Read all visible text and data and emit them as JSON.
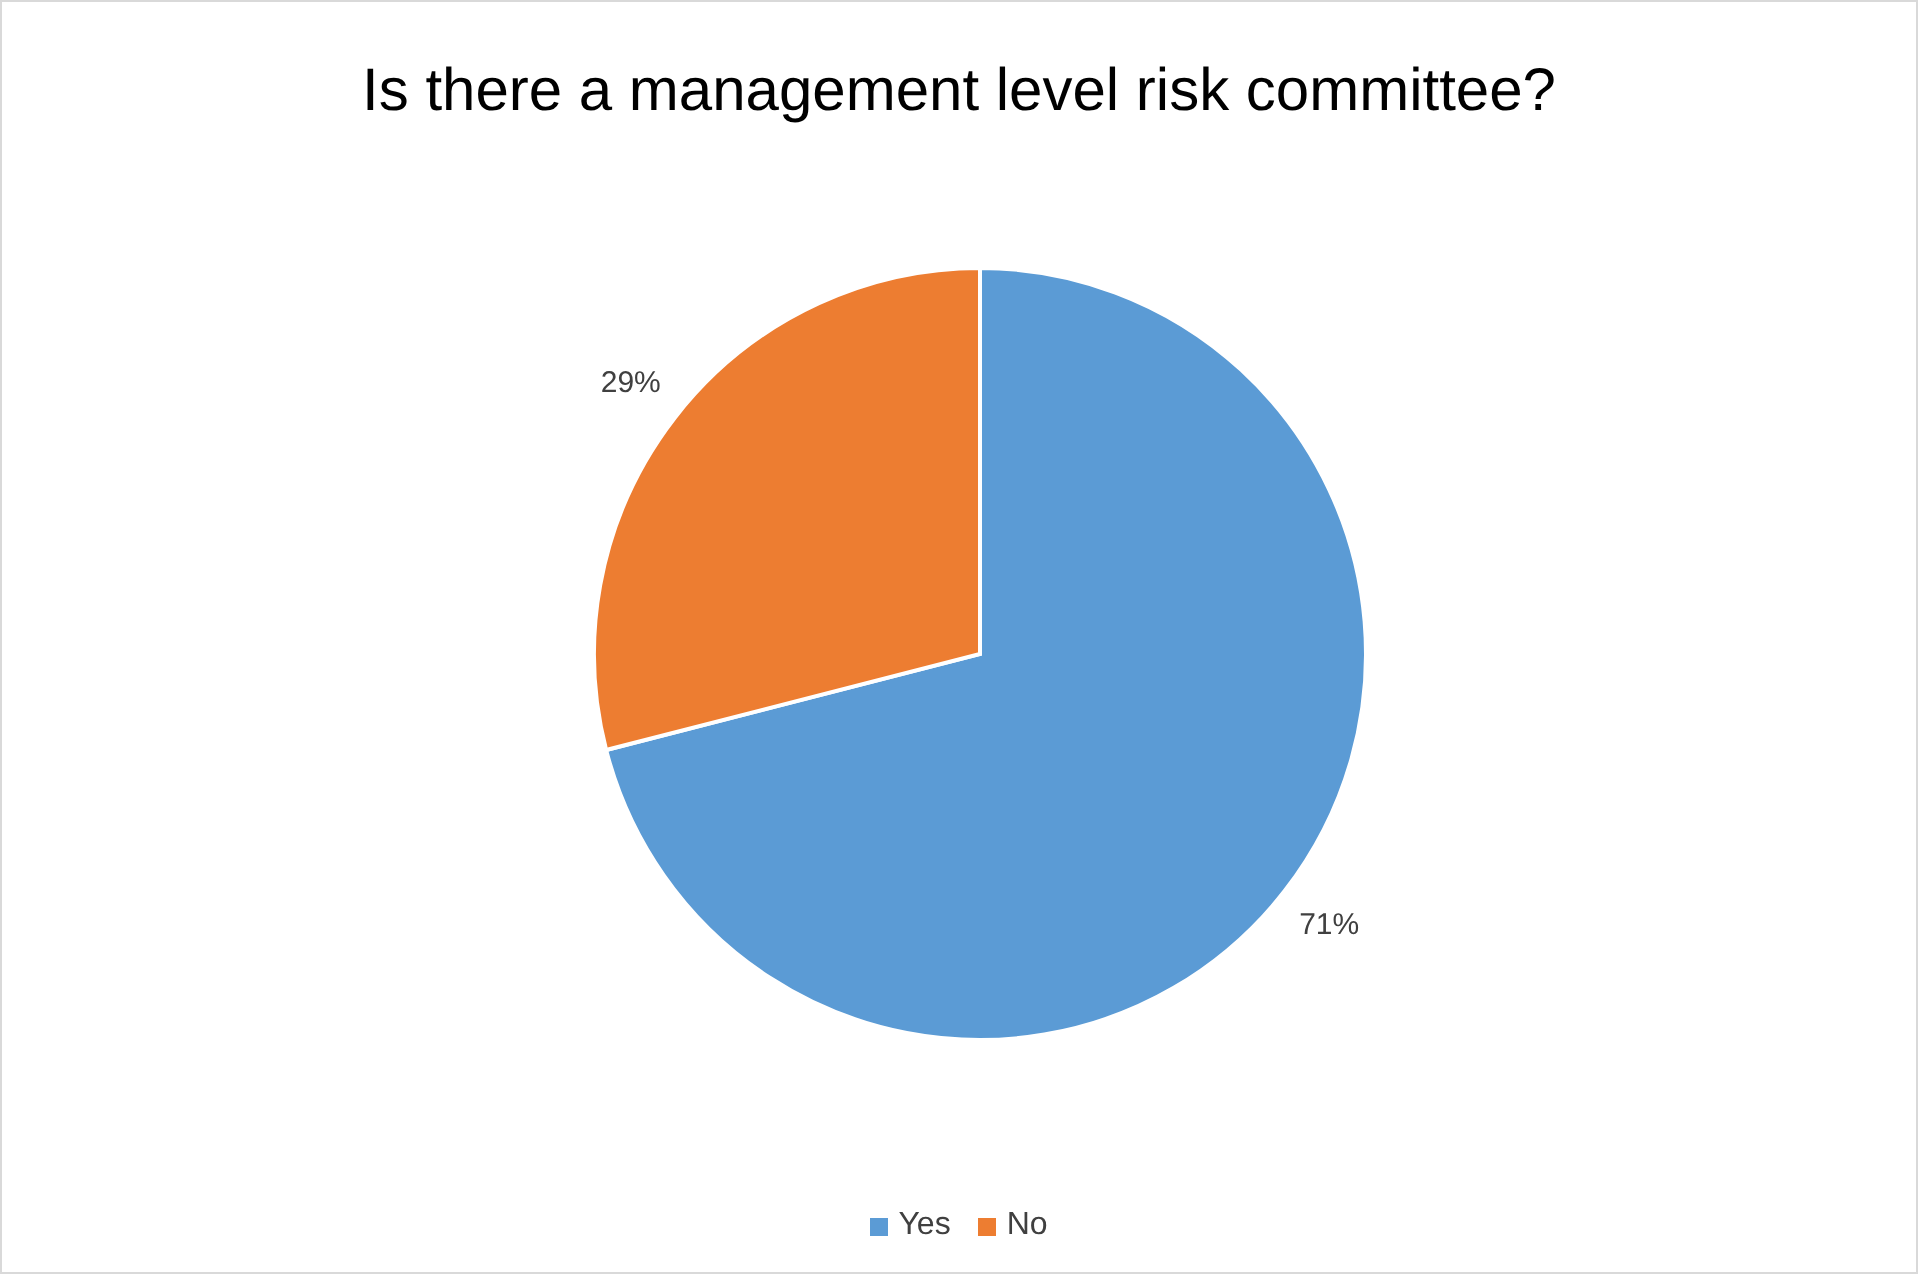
{
  "chart_data": {
    "type": "pie",
    "title": "Is there a management level risk committee?",
    "categories": [
      "Yes",
      "No"
    ],
    "values": [
      71,
      29
    ],
    "value_labels": [
      "71%",
      "29%"
    ],
    "colors": [
      "#5b9bd5",
      "#ed7d31"
    ],
    "legend": "bottom"
  }
}
